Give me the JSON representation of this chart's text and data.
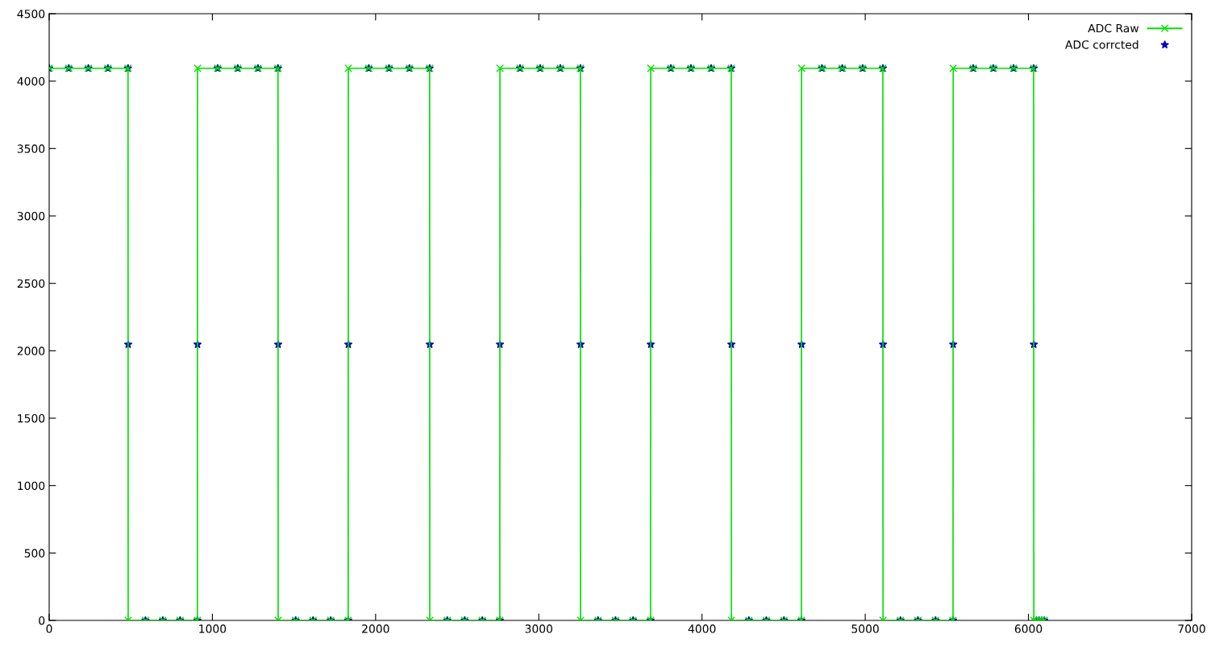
{
  "chart_data": {
    "type": "line",
    "xlim": [
      0,
      7000
    ],
    "xticks": [
      0,
      1000,
      2000,
      3000,
      4000,
      5000,
      6000,
      7000
    ],
    "ylim": [
      0,
      4500
    ],
    "yticks": [
      0,
      500,
      1000,
      1500,
      2000,
      2500,
      3000,
      3500,
      4000,
      4500
    ],
    "grid": false,
    "legend": "top right",
    "series": [
      {
        "name": "ADC Raw",
        "marker": "cross",
        "line_style": "solid",
        "color": "#00e000",
        "x": [
          0,
          120,
          240,
          360,
          483,
          484,
          590,
          696,
          802,
          908,
          909,
          1032,
          1155,
          1279,
          1402,
          1403,
          1510,
          1617,
          1725,
          1832,
          1833,
          1958,
          2082,
          2207,
          2331,
          2332,
          2439,
          2546,
          2654,
          2761,
          2762,
          2885,
          3008,
          3132,
          3255,
          3256,
          3363,
          3470,
          3578,
          3685,
          3686,
          3809,
          3932,
          4056,
          4179,
          4180,
          4287,
          4394,
          4502,
          4609,
          4610,
          4735,
          4859,
          4984,
          5108,
          5109,
          5216,
          5323,
          5431,
          5538,
          5539,
          5662,
          5785,
          5909,
          6032,
          6033,
          6049,
          6065,
          6081,
          6097
        ],
        "values": [
          4095,
          4095,
          4095,
          4095,
          4095,
          0,
          0,
          0,
          0,
          0,
          4095,
          4095,
          4095,
          4095,
          4095,
          0,
          0,
          0,
          0,
          0,
          4095,
          4095,
          4095,
          4095,
          4095,
          0,
          0,
          0,
          0,
          0,
          4095,
          4095,
          4095,
          4095,
          4095,
          0,
          0,
          0,
          0,
          0,
          4095,
          4095,
          4095,
          4095,
          4095,
          0,
          0,
          0,
          0,
          0,
          4095,
          4095,
          4095,
          4095,
          4095,
          0,
          0,
          0,
          0,
          0,
          4095,
          4095,
          4095,
          4095,
          4095,
          0,
          0,
          0,
          0,
          0
        ]
      },
      {
        "name": "ADC corrcted",
        "type": "scatter",
        "marker": "star",
        "color": "#0000c0",
        "x": [
          0,
          120,
          240,
          360,
          483,
          484,
          590,
          696,
          802,
          908,
          909,
          1032,
          1155,
          1279,
          1402,
          1403,
          1510,
          1617,
          1725,
          1832,
          1833,
          1958,
          2082,
          2207,
          2331,
          2332,
          2439,
          2546,
          2654,
          2761,
          2762,
          2885,
          3008,
          3132,
          3255,
          3256,
          3363,
          3470,
          3578,
          3685,
          3686,
          3809,
          3932,
          4056,
          4179,
          4180,
          4287,
          4394,
          4502,
          4609,
          4610,
          4735,
          4859,
          4984,
          5108,
          5109,
          5216,
          5323,
          5431,
          5538,
          5539,
          5662,
          5785,
          5909,
          6032,
          6033,
          6049,
          6065,
          6081,
          6097
        ],
        "values": [
          4095,
          4095,
          4095,
          4095,
          4095,
          2047,
          0,
          0,
          0,
          0,
          2047,
          4095,
          4095,
          4095,
          4095,
          2047,
          0,
          0,
          0,
          0,
          2047,
          4095,
          4095,
          4095,
          4095,
          2047,
          0,
          0,
          0,
          0,
          2047,
          4095,
          4095,
          4095,
          4095,
          2047,
          0,
          0,
          0,
          0,
          2047,
          4095,
          4095,
          4095,
          4095,
          2047,
          0,
          0,
          0,
          0,
          2047,
          4095,
          4095,
          4095,
          4095,
          2047,
          0,
          0,
          0,
          0,
          2047,
          4095,
          4095,
          4095,
          4095,
          2047,
          0,
          0,
          0,
          0
        ]
      }
    ]
  }
}
